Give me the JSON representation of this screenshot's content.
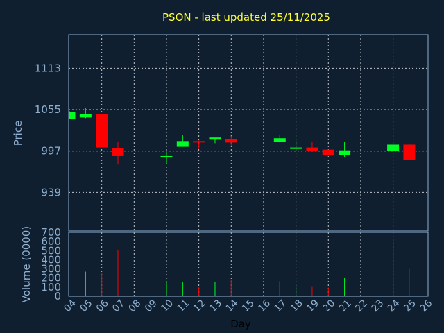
{
  "chart_data": [
    {
      "type": "candlestick",
      "title": "PSON - last updated 25/11/2025",
      "ylabel": "Price",
      "ylim": [
        885,
        1160
      ],
      "yticks": [
        939,
        997,
        1055,
        1113
      ],
      "grid": true,
      "up_color": "#00ff22",
      "down_color": "#ff0000",
      "candles": [
        {
          "day": "04",
          "open": 1042,
          "high": 1053,
          "low": 1042,
          "close": 1052
        },
        {
          "day": "05",
          "open": 1044,
          "high": 1058,
          "low": 1043,
          "close": 1049
        },
        {
          "day": "06",
          "open": 1049,
          "high": 1049,
          "low": 1002,
          "close": 1002
        },
        {
          "day": "07",
          "open": 1001,
          "high": 1010,
          "low": 978,
          "close": 990
        },
        {
          "day": "10",
          "open": 989,
          "high": 996,
          "low": 980,
          "close": 990
        },
        {
          "day": "11",
          "open": 1003,
          "high": 1019,
          "low": 1003,
          "close": 1011
        },
        {
          "day": "12",
          "open": 1011,
          "high": 1012,
          "low": 1000,
          "close": 1010
        },
        {
          "day": "13",
          "open": 1013,
          "high": 1015,
          "low": 1008,
          "close": 1016
        },
        {
          "day": "14",
          "open": 1014,
          "high": 1018,
          "low": 1004,
          "close": 1009
        },
        {
          "day": "17",
          "open": 1010,
          "high": 1019,
          "low": 1009,
          "close": 1015
        },
        {
          "day": "18",
          "open": 1000,
          "high": 1012,
          "low": 998,
          "close": 1002
        },
        {
          "day": "19",
          "open": 1002,
          "high": 1010,
          "low": 996,
          "close": 997
        },
        {
          "day": "20",
          "open": 999,
          "high": 999,
          "low": 991,
          "close": 991
        },
        {
          "day": "21",
          "open": 991,
          "high": 1010,
          "low": 988,
          "close": 998
        },
        {
          "day": "24",
          "open": 997,
          "high": 1006,
          "low": 996,
          "close": 1006
        },
        {
          "day": "25",
          "open": 1006,
          "high": 1007,
          "low": 984,
          "close": 985
        }
      ]
    },
    {
      "type": "bar",
      "ylabel": "Volume (0000)",
      "xlabel": "Day",
      "ylim": [
        0,
        700
      ],
      "yticks": [
        0,
        100,
        200,
        300,
        400,
        500,
        600,
        700
      ],
      "categories": [
        "04",
        "05",
        "06",
        "07",
        "08",
        "09",
        "10",
        "11",
        "12",
        "13",
        "14",
        "15",
        "16",
        "17",
        "18",
        "19",
        "20",
        "21",
        "22",
        "23",
        "24",
        "25",
        "26"
      ],
      "values": [
        {
          "day": "04",
          "value": 0,
          "color": "#00ff22"
        },
        {
          "day": "05",
          "value": 270,
          "color": "#00ff22"
        },
        {
          "day": "06",
          "value": 250,
          "color": "#ff0000"
        },
        {
          "day": "07",
          "value": 510,
          "color": "#ff0000"
        },
        {
          "day": "10",
          "value": 165,
          "color": "#00ff22"
        },
        {
          "day": "11",
          "value": 155,
          "color": "#00ff22"
        },
        {
          "day": "12",
          "value": 100,
          "color": "#ff0000"
        },
        {
          "day": "13",
          "value": 160,
          "color": "#00ff22"
        },
        {
          "day": "14",
          "value": 175,
          "color": "#ff0000"
        },
        {
          "day": "17",
          "value": 165,
          "color": "#00ff22"
        },
        {
          "day": "18",
          "value": 120,
          "color": "#00ff22"
        },
        {
          "day": "19",
          "value": 110,
          "color": "#ff0000"
        },
        {
          "day": "20",
          "value": 95,
          "color": "#ff0000"
        },
        {
          "day": "21",
          "value": 200,
          "color": "#00ff22"
        },
        {
          "day": "24",
          "value": 600,
          "color": "#00ff22"
        },
        {
          "day": "25",
          "value": 300,
          "color": "#ff0000"
        }
      ]
    }
  ]
}
